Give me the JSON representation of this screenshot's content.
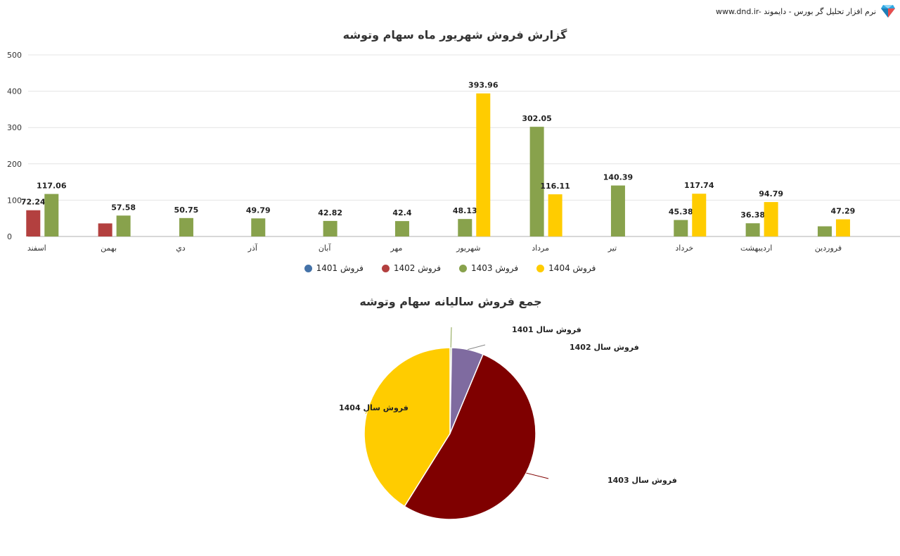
{
  "header": {
    "brand_text": "www.dnd.ir- نرم افزار تحلیل گر بورس - دایموند",
    "logo_icon": "diamond-icon"
  },
  "chart_data": [
    {
      "type": "bar",
      "title": "گزارش فروش شهریور ماه سهام وتوشه",
      "categories": [
        "فروردین",
        "اردیبهشت",
        "خرداد",
        "تیر",
        "مرداد",
        "شهریور",
        "مهر",
        "آبان",
        "آذر",
        "دي",
        "بهمن",
        "اسفند"
      ],
      "ylim": [
        0,
        500
      ],
      "yticks": [
        0,
        100,
        200,
        300,
        400,
        500
      ],
      "grid": true,
      "legend_position": "bottom",
      "series": [
        {
          "name": "فروش 1401",
          "color": "#4472a8",
          "values": [
            null,
            null,
            null,
            null,
            null,
            null,
            null,
            null,
            null,
            null,
            null,
            null
          ]
        },
        {
          "name": "فروش 1402",
          "color": "#b3403f",
          "values": [
            null,
            null,
            null,
            null,
            null,
            null,
            null,
            null,
            null,
            null,
            36,
            72.24
          ]
        },
        {
          "name": "فروش 1403",
          "color": "#88a24c",
          "values": [
            28,
            36.38,
            45.38,
            140.39,
            302.05,
            48.13,
            42.4,
            42.82,
            49.79,
            50.75,
            57.58,
            117.06
          ]
        },
        {
          "name": "فروش 1404",
          "color": "#ffcc00",
          "values": [
            47.29,
            94.79,
            117.74,
            null,
            116.11,
            393.96,
            null,
            null,
            null,
            null,
            null,
            null
          ]
        }
      ],
      "data_labels": [
        [
          null,
          null,
          null,
          null,
          null,
          null,
          null,
          null,
          null,
          null,
          null,
          null
        ],
        [
          null,
          null,
          null,
          null,
          null,
          null,
          null,
          null,
          null,
          null,
          null,
          "72.24"
        ],
        [
          null,
          "36.38",
          "45.38",
          "140.39",
          "302.05",
          "48.13",
          "42.4",
          "42.82",
          "49.79",
          "50.75",
          "57.58",
          "117.06"
        ],
        [
          "47.29",
          "94.79",
          "117.74",
          null,
          "116.11",
          "393.96",
          null,
          null,
          null,
          null,
          null,
          null
        ]
      ]
    },
    {
      "type": "pie",
      "title": "جمع فروش سالیانه سهام وتوشه",
      "slices": [
        {
          "label": "فروش سال 1401",
          "value": 0.3,
          "color": "#88a24c"
        },
        {
          "label": "فروش سال 1402",
          "value": 6.0,
          "color": "#7f6ba0"
        },
        {
          "label": "فروش سال 1403",
          "value": 52.6,
          "color": "#7f0000"
        },
        {
          "label": "فروش سال 1404",
          "value": 41.1,
          "color": "#ffcc00"
        }
      ]
    }
  ]
}
